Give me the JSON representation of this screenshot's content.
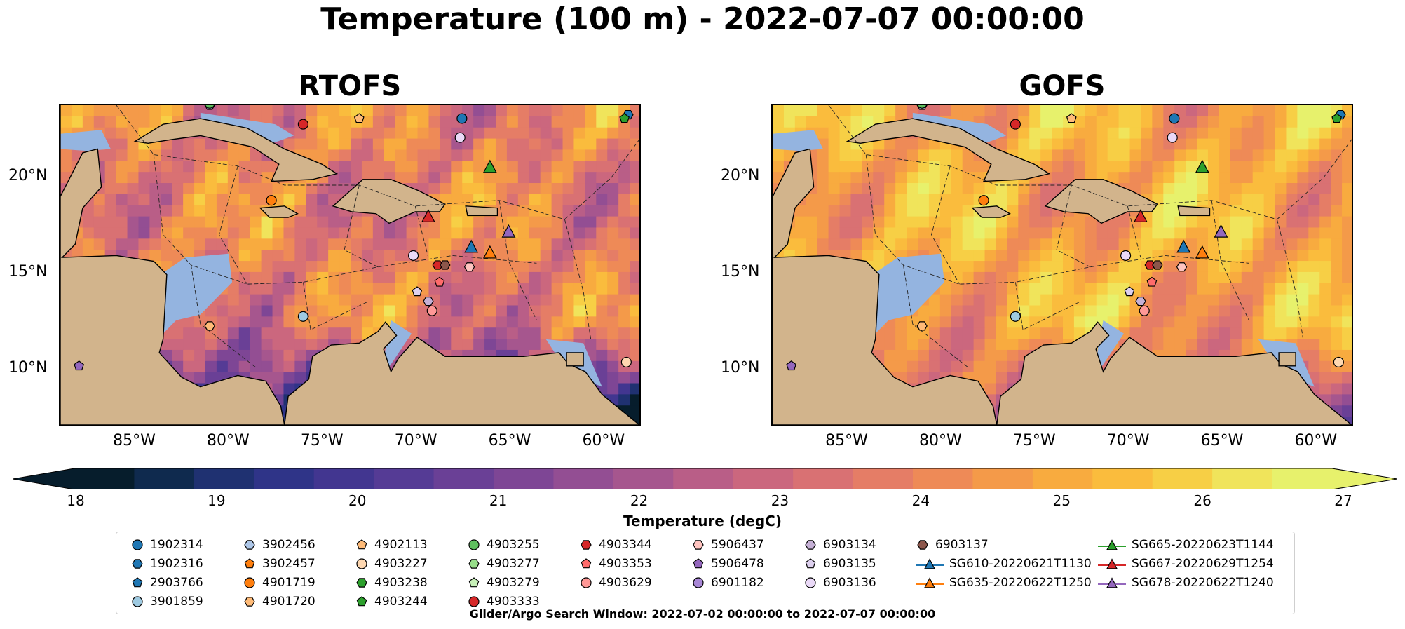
{
  "figure": {
    "title": "Temperature (100 m) - 2022-07-07 00:00:00",
    "search_window": "Glider/Argo Search Window: 2022-07-02 00:00:00 to 2022-07-07 00:00:00"
  },
  "panels": [
    {
      "title": "RTOFS",
      "model": "RTOFS"
    },
    {
      "title": "GOFS",
      "model": "GOFS"
    }
  ],
  "axes": {
    "lon_ticks": [
      "85°W",
      "80°W",
      "75°W",
      "70°W",
      "65°W",
      "60°W"
    ],
    "lat_ticks": [
      "20°N",
      "15°N",
      "10°N"
    ],
    "lon_range": [
      -89,
      -58
    ],
    "lat_range": [
      7,
      23.8
    ]
  },
  "colorbar": {
    "label": "Temperature (degC)",
    "ticks": [
      "18",
      "19",
      "20",
      "21",
      "22",
      "23",
      "24",
      "25",
      "26",
      "27"
    ],
    "range": [
      18,
      27
    ],
    "extend": "both",
    "colors": [
      "#061d2c",
      "#0f2a4e",
      "#1f3171",
      "#2f3488",
      "#423690",
      "#553b95",
      "#6a4096",
      "#7e4695",
      "#934e93",
      "#a6568e",
      "#b95e87",
      "#cb677e",
      "#d97173",
      "#e57d66",
      "#ee8a57",
      "#f49a49",
      "#f8ab3f",
      "#fabc3d",
      "#f7cf45",
      "#f0e45b",
      "#e7f16c"
    ]
  },
  "legend": {
    "items": [
      {
        "label": "1902314",
        "marker": "circle",
        "color": "#1f77b4"
      },
      {
        "label": "1902316",
        "marker": "hexagon",
        "color": "#1f77b4"
      },
      {
        "label": "2903766",
        "marker": "pentagon",
        "color": "#1f77b4"
      },
      {
        "label": "3901859",
        "marker": "circle",
        "color": "#9ecae1"
      },
      {
        "label": "3902456",
        "marker": "hexagon",
        "color": "#aec7e8"
      },
      {
        "label": "3902457",
        "marker": "pentagon",
        "color": "#ff7f0e"
      },
      {
        "label": "4901719",
        "marker": "circle",
        "color": "#ff7f0e"
      },
      {
        "label": "4901720",
        "marker": "hexagon",
        "color": "#ffbb78"
      },
      {
        "label": "4902113",
        "marker": "pentagon",
        "color": "#ffbb78"
      },
      {
        "label": "4903227",
        "marker": "circle",
        "color": "#ffd8b1"
      },
      {
        "label": "4903238",
        "marker": "hexagon",
        "color": "#2ca02c"
      },
      {
        "label": "4903244",
        "marker": "pentagon",
        "color": "#2ca02c"
      },
      {
        "label": "4903255",
        "marker": "circle",
        "color": "#5fbf5f"
      },
      {
        "label": "4903277",
        "marker": "hexagon",
        "color": "#98df8a"
      },
      {
        "label": "4903279",
        "marker": "pentagon",
        "color": "#c7f0b8"
      },
      {
        "label": "4903333",
        "marker": "circle",
        "color": "#d62728"
      },
      {
        "label": "4903344",
        "marker": "hexagon",
        "color": "#d62728"
      },
      {
        "label": "4903353",
        "marker": "pentagon",
        "color": "#ff6b6b"
      },
      {
        "label": "4903629",
        "marker": "circle",
        "color": "#ff9896"
      },
      {
        "label": "5906437",
        "marker": "hexagon",
        "color": "#ffc4c0"
      },
      {
        "label": "5906478",
        "marker": "pentagon",
        "color": "#9467bd"
      },
      {
        "label": "6901182",
        "marker": "circle",
        "color": "#a887d6"
      },
      {
        "label": "6903134",
        "marker": "hexagon",
        "color": "#c5b0d5"
      },
      {
        "label": "6903135",
        "marker": "pentagon",
        "color": "#ddd0ee"
      },
      {
        "label": "6903136",
        "marker": "circle",
        "color": "#ead9f7"
      },
      {
        "label": "6903137",
        "marker": "hexagon",
        "color": "#8c564b"
      },
      {
        "label": "SG610-20220621T1130",
        "marker": "triangle-line",
        "color": "#1f77b4"
      },
      {
        "label": "SG635-20220622T1250",
        "marker": "triangle-line",
        "color": "#ff7f0e"
      },
      {
        "label": "SG665-20220623T1144",
        "marker": "triangle-line",
        "color": "#2ca02c"
      },
      {
        "label": "SG667-20220629T1254",
        "marker": "triangle-line",
        "color": "#d62728"
      },
      {
        "label": "SG678-20220622T1240",
        "marker": "triangle-line",
        "color": "#9467bd"
      }
    ]
  },
  "observations": [
    {
      "lon": -67.5,
      "lat": 23.1,
      "marker": "circle",
      "color": "#1f77b4"
    },
    {
      "lon": -58.6,
      "lat": 23.3,
      "marker": "hexagon",
      "color": "#1f77b4"
    },
    {
      "lon": -76.0,
      "lat": 12.7,
      "marker": "circle",
      "color": "#9ecae1"
    },
    {
      "lon": -81.0,
      "lat": 23.8,
      "marker": "hexagon",
      "color": "#aec7e8"
    },
    {
      "lon": -77.7,
      "lat": 18.8,
      "marker": "circle",
      "color": "#ff7f0e"
    },
    {
      "lon": -81.0,
      "lat": 12.2,
      "marker": "hexagon",
      "color": "#ffbb78"
    },
    {
      "lon": -73.0,
      "lat": 23.1,
      "marker": "pentagon",
      "color": "#ffbb78"
    },
    {
      "lon": -58.7,
      "lat": 10.3,
      "marker": "circle",
      "color": "#ffd8b1"
    },
    {
      "lon": -58.8,
      "lat": 23.1,
      "marker": "pentagon",
      "color": "#2ca02c"
    },
    {
      "lon": -81.0,
      "lat": 23.9,
      "marker": "circle",
      "color": "#5fbf5f"
    },
    {
      "lon": -76.0,
      "lat": 22.8,
      "marker": "circle",
      "color": "#d62728"
    },
    {
      "lon": -68.8,
      "lat": 15.4,
      "marker": "hexagon",
      "color": "#d62728"
    },
    {
      "lon": -68.7,
      "lat": 14.5,
      "marker": "pentagon",
      "color": "#ff6b6b"
    },
    {
      "lon": -69.1,
      "lat": 13.0,
      "marker": "circle",
      "color": "#ff9896"
    },
    {
      "lon": -67.1,
      "lat": 15.3,
      "marker": "hexagon",
      "color": "#ffc4c0"
    },
    {
      "lon": -88.0,
      "lat": 10.1,
      "marker": "pentagon",
      "color": "#9467bd"
    },
    {
      "lon": -69.3,
      "lat": 13.5,
      "marker": "hexagon",
      "color": "#c5b0d5"
    },
    {
      "lon": -69.9,
      "lat": 14.0,
      "marker": "pentagon",
      "color": "#ddd0ee"
    },
    {
      "lon": -67.6,
      "lat": 22.1,
      "marker": "circle",
      "color": "#ead9f7"
    },
    {
      "lon": -70.1,
      "lat": 15.9,
      "marker": "circle",
      "color": "#ead9f7"
    },
    {
      "lon": -68.4,
      "lat": 15.4,
      "marker": "hexagon",
      "color": "#8c564b"
    },
    {
      "lon": -67.0,
      "lat": 16.3,
      "marker": "triangle",
      "color": "#1f77b4"
    },
    {
      "lon": -66.0,
      "lat": 16.0,
      "marker": "triangle",
      "color": "#ff7f0e"
    },
    {
      "lon": -66.0,
      "lat": 20.5,
      "marker": "triangle",
      "color": "#2ca02c"
    },
    {
      "lon": -69.3,
      "lat": 17.9,
      "marker": "triangle",
      "color": "#d62728"
    },
    {
      "lon": -65.0,
      "lat": 17.1,
      "marker": "triangle",
      "color": "#9467bd"
    }
  ]
}
